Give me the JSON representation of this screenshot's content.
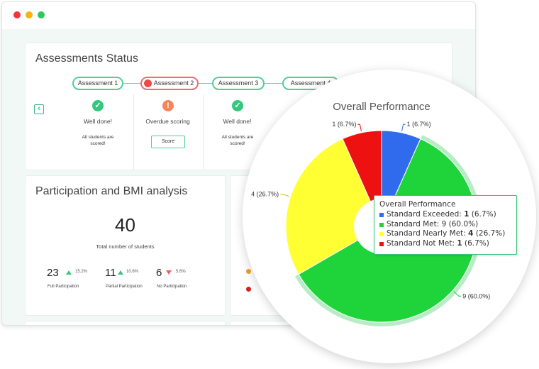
{
  "assessments": {
    "title": "Assessments Status",
    "items": [
      {
        "label": "Assessment 1",
        "status": "Well done!",
        "note": "All students are scored!",
        "icon": "check-icon"
      },
      {
        "label": "Assessment 2",
        "status": "Overdue scoring",
        "button": "Score",
        "icon": "exclamation-icon"
      },
      {
        "label": "Assessment 3",
        "status": "Well done!",
        "note": "All students are scored!",
        "icon": "check-icon"
      },
      {
        "label": "Assessment 4"
      }
    ]
  },
  "participation": {
    "title": "Participation and BMI analysis",
    "total": "40",
    "total_label": "Total number of students",
    "stats": [
      {
        "value": "23",
        "trend": "up",
        "pct": "15.2%",
        "label": "Full Participation"
      },
      {
        "value": "11",
        "trend": "up",
        "pct": "10.6%",
        "label": "Partial Participation"
      },
      {
        "value": "6",
        "trend": "down",
        "pct": "5.6%",
        "label": "No Participation"
      }
    ]
  },
  "colors": {
    "accent": "#4fcf96",
    "exceeded": "#2f6bec",
    "met": "#1ed43a",
    "nearly_met": "#ffff33",
    "not_met": "#ee1111"
  },
  "chart_data": {
    "type": "pie",
    "title": "Overall Performance",
    "categories": [
      "Standard Exceeded",
      "Standard Met",
      "Standard Nearly Met",
      "Standard Not Met"
    ],
    "values": [
      1,
      9,
      4,
      1
    ],
    "percents": [
      "6.7%",
      "60.0%",
      "26.7%",
      "6.7%"
    ],
    "labels": [
      "1 (6.7%)",
      "9 (60.0%)",
      "4 (26.7%)",
      "1 (6.7%)"
    ],
    "highlighted": "Standard Met"
  },
  "tooltip": {
    "title": "Overall Performance",
    "rows": [
      {
        "name": "Standard Exceeded:",
        "count": "1",
        "pct": "(6.7%)"
      },
      {
        "name": "Standard Met:",
        "count": "9",
        "pct": "(60.0%)"
      },
      {
        "name": "Standard Nearly Met:",
        "count": "4",
        "pct": "(26.7%)"
      },
      {
        "name": "Standard Not Met:",
        "count": "1",
        "pct": "(6.7%)"
      }
    ]
  }
}
